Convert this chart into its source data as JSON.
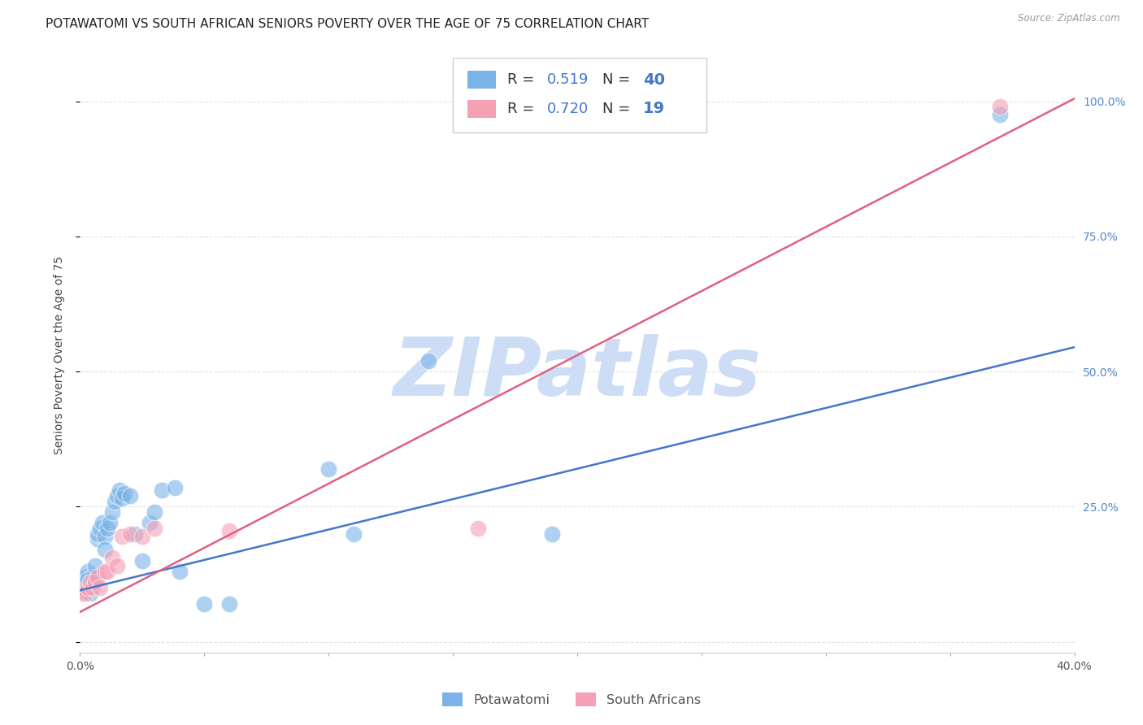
{
  "title": "POTAWATOMI VS SOUTH AFRICAN SENIORS POVERTY OVER THE AGE OF 75 CORRELATION CHART",
  "source": "Source: ZipAtlas.com",
  "ylabel": "Seniors Poverty Over the Age of 75",
  "xlim": [
    0.0,
    0.4
  ],
  "ylim": [
    -0.02,
    1.08
  ],
  "xticks": [
    0.0,
    0.05,
    0.1,
    0.15,
    0.2,
    0.25,
    0.3,
    0.35,
    0.4
  ],
  "yticks": [
    0.0,
    0.25,
    0.5,
    0.75,
    1.0
  ],
  "potawatomi_color": "#7ab3e8",
  "south_african_color": "#f4a0b5",
  "potawatomi_line_color": "#4477cc",
  "south_african_line_color": "#e06080",
  "R_potawatomi": 0.519,
  "N_potawatomi": 40,
  "R_south_african": 0.72,
  "N_south_african": 19,
  "background_color": "#ffffff",
  "grid_color": "#e0e0e0",
  "watermark": "ZIPatlas",
  "watermark_color": "#ccddf5",
  "potawatomi_x": [
    0.001,
    0.001,
    0.002,
    0.002,
    0.003,
    0.003,
    0.004,
    0.004,
    0.005,
    0.005,
    0.006,
    0.007,
    0.007,
    0.008,
    0.009,
    0.01,
    0.01,
    0.011,
    0.012,
    0.013,
    0.014,
    0.015,
    0.016,
    0.017,
    0.018,
    0.02,
    0.022,
    0.025,
    0.028,
    0.03,
    0.033,
    0.038,
    0.04,
    0.05,
    0.06,
    0.1,
    0.11,
    0.14,
    0.19,
    0.37
  ],
  "potawatomi_y": [
    0.115,
    0.105,
    0.12,
    0.1,
    0.13,
    0.115,
    0.1,
    0.09,
    0.12,
    0.11,
    0.14,
    0.19,
    0.2,
    0.21,
    0.22,
    0.195,
    0.17,
    0.21,
    0.22,
    0.24,
    0.26,
    0.27,
    0.28,
    0.265,
    0.275,
    0.27,
    0.2,
    0.15,
    0.22,
    0.24,
    0.28,
    0.285,
    0.13,
    0.07,
    0.07,
    0.32,
    0.2,
    0.52,
    0.2,
    0.975
  ],
  "south_african_x": [
    0.001,
    0.002,
    0.003,
    0.004,
    0.005,
    0.006,
    0.007,
    0.008,
    0.01,
    0.011,
    0.013,
    0.015,
    0.017,
    0.02,
    0.025,
    0.03,
    0.06,
    0.16,
    0.37
  ],
  "south_african_y": [
    0.09,
    0.09,
    0.1,
    0.11,
    0.1,
    0.11,
    0.12,
    0.1,
    0.13,
    0.13,
    0.155,
    0.14,
    0.195,
    0.2,
    0.195,
    0.21,
    0.205,
    0.21,
    0.99
  ],
  "blue_line_x0": 0.0,
  "blue_line_y0": 0.095,
  "blue_line_x1": 0.4,
  "blue_line_y1": 0.545,
  "pink_line_x0": 0.0,
  "pink_line_y0": 0.055,
  "pink_line_x1": 0.4,
  "pink_line_y1": 1.005,
  "title_fontsize": 11,
  "axis_label_fontsize": 10,
  "tick_fontsize": 10,
  "legend_fontsize": 13,
  "marker_size": 220
}
